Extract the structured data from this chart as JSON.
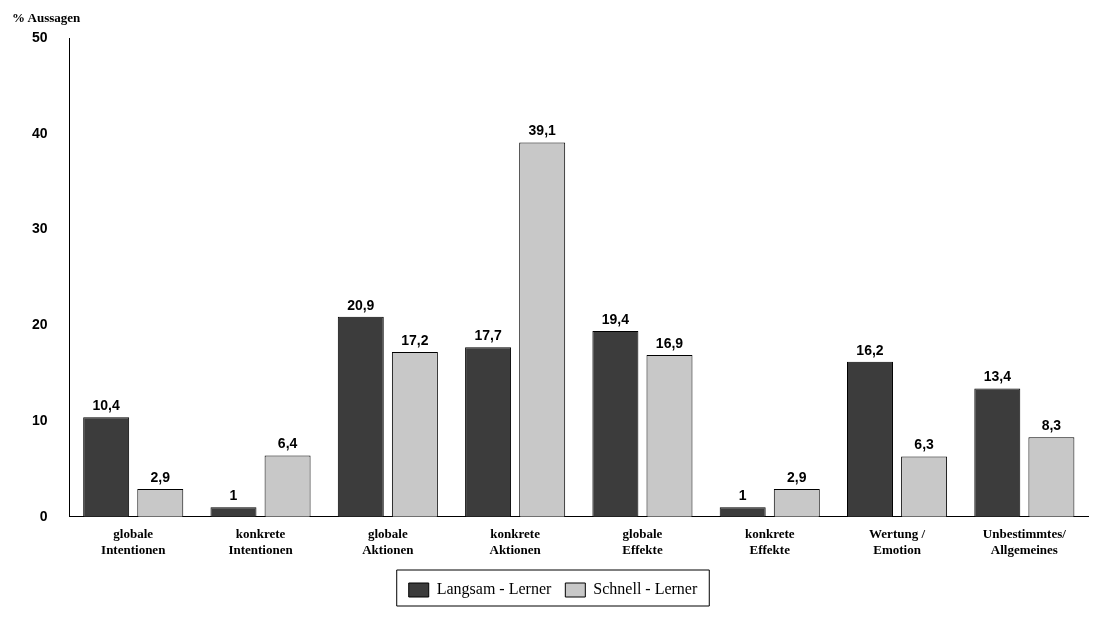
{
  "chart_data": {
    "type": "bar",
    "ylabel": "% Aussagen",
    "categories": [
      "globale Intentionen",
      "konkrete Intentionen",
      "globale Aktionen",
      "konkrete Aktionen",
      "globale Effekte",
      "konkrete Effekte",
      "Wertung / Emotion",
      "Unbestimmtes/ Allgemeines"
    ],
    "series": [
      {
        "name": "Langsam - Lerner",
        "color": "#3c3c3c",
        "values": [
          10.4,
          1,
          20.9,
          17.7,
          19.4,
          1,
          16.2,
          13.4
        ],
        "value_labels": [
          "10,4",
          "1",
          "20,9",
          "17,7",
          "19,4",
          "1",
          "16,2",
          "13,4"
        ]
      },
      {
        "name": "Schnell - Lerner",
        "color": "#c8c8c8",
        "values": [
          2.9,
          6.4,
          17.2,
          39.1,
          16.9,
          2.9,
          6.3,
          8.3
        ],
        "value_labels": [
          "2,9",
          "6,4",
          "17,2",
          "39,1",
          "16,9",
          "2,9",
          "6,3",
          "8,3"
        ]
      }
    ],
    "ylim": [
      0,
      50
    ],
    "yticks": [
      0,
      10,
      20,
      30,
      40,
      50
    ],
    "grid": false,
    "legend": "bottom"
  }
}
